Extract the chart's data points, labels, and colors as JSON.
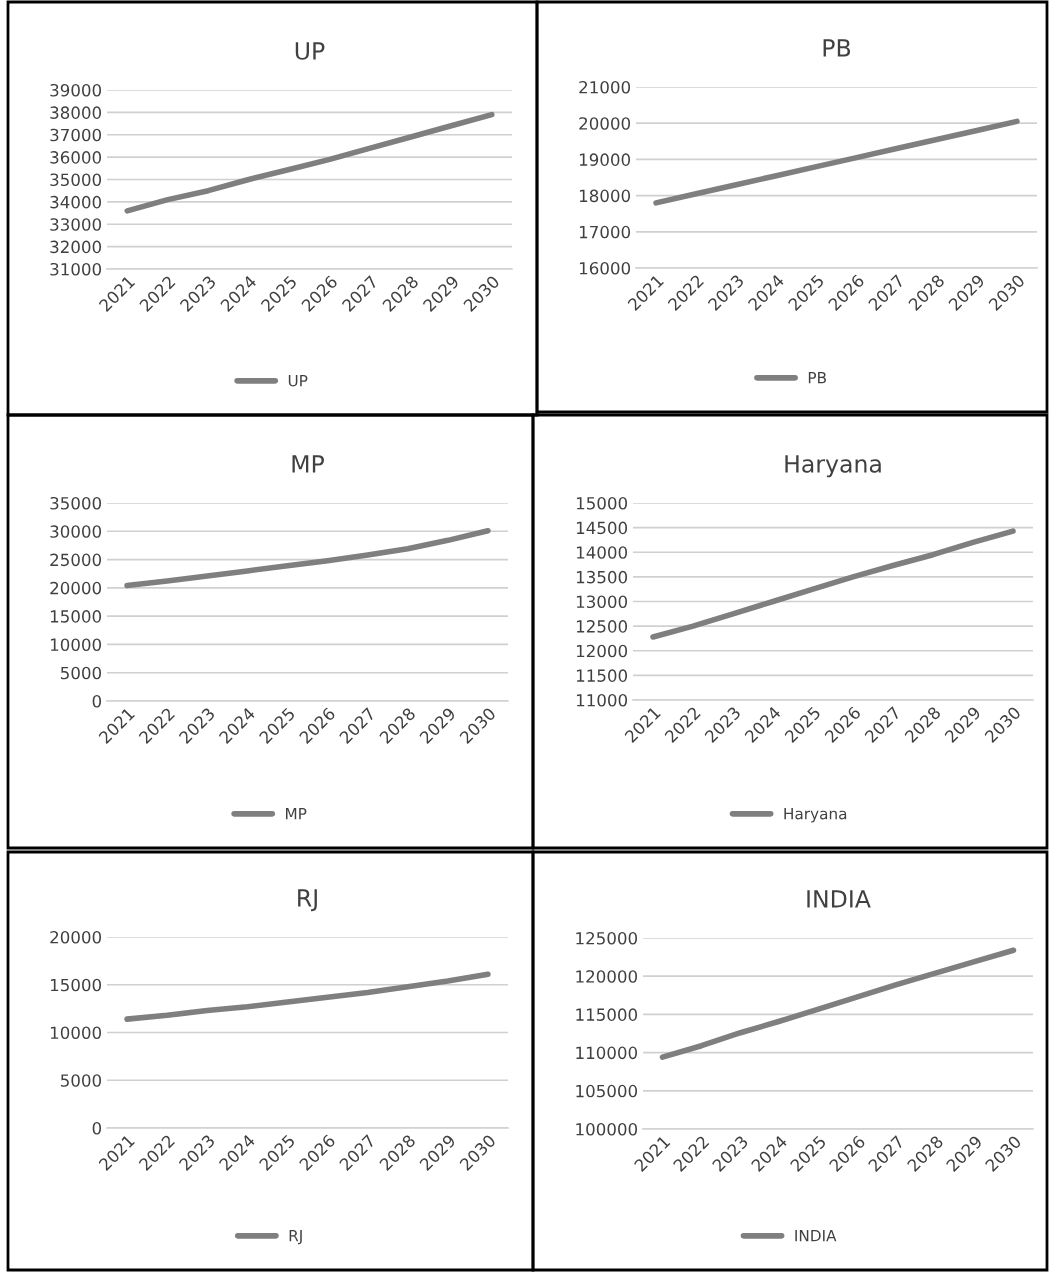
{
  "chart_data": [
    {
      "type": "line",
      "title": "UP",
      "categories": [
        "2021",
        "2022",
        "2023",
        "2024",
        "2025",
        "2026",
        "2027",
        "2028",
        "2029",
        "2030"
      ],
      "series": [
        {
          "name": "UP",
          "color": "#7f7f7f",
          "values": [
            33600,
            34100,
            34500,
            35000,
            35450,
            35900,
            36400,
            36900,
            37400,
            37900
          ]
        }
      ],
      "ylim": [
        31000,
        39000
      ],
      "yticks": [
        31000,
        32000,
        33000,
        34000,
        35000,
        36000,
        37000,
        38000,
        39000
      ],
      "grid": "y",
      "legend": "bottom",
      "marker": "none",
      "line_style": "solid"
    },
    {
      "type": "line",
      "title": "PB",
      "categories": [
        "2021",
        "2022",
        "2023",
        "2024",
        "2025",
        "2026",
        "2027",
        "2028",
        "2029",
        "2030"
      ],
      "series": [
        {
          "name": "PB",
          "color": "#7f7f7f",
          "values": [
            17800,
            18050,
            18300,
            18550,
            18800,
            19050,
            19300,
            19550,
            19800,
            20050
          ]
        }
      ],
      "ylim": [
        16000,
        21000
      ],
      "yticks": [
        16000,
        17000,
        18000,
        19000,
        20000,
        21000
      ],
      "grid": "y",
      "legend": "bottom",
      "marker": "none",
      "line_style": "solid"
    },
    {
      "type": "line",
      "title": "MP",
      "categories": [
        "2021",
        "2022",
        "2023",
        "2024",
        "2025",
        "2026",
        "2027",
        "2028",
        "2029",
        "2030"
      ],
      "series": [
        {
          "name": "MP",
          "color": "#7f7f7f",
          "values": [
            20400,
            21200,
            22100,
            23000,
            23900,
            24800,
            25800,
            26900,
            28400,
            30100
          ]
        }
      ],
      "ylim": [
        0,
        35000
      ],
      "yticks": [
        0,
        5000,
        10000,
        15000,
        20000,
        25000,
        30000,
        35000
      ],
      "grid": "y",
      "legend": "bottom",
      "marker": "none",
      "line_style": "solid"
    },
    {
      "type": "line",
      "title": "Haryana",
      "categories": [
        "2021",
        "2022",
        "2023",
        "2024",
        "2025",
        "2026",
        "2027",
        "2028",
        "2029",
        "2030"
      ],
      "series": [
        {
          "name": "Haryana",
          "color": "#7f7f7f",
          "values": [
            12280,
            12500,
            12750,
            13000,
            13250,
            13500,
            13730,
            13950,
            14200,
            14430
          ]
        }
      ],
      "ylim": [
        11000,
        15000
      ],
      "yticks": [
        11000,
        11500,
        12000,
        12500,
        13000,
        13500,
        14000,
        14500,
        15000
      ],
      "grid": "y",
      "legend": "bottom",
      "marker": "none",
      "line_style": "solid"
    },
    {
      "type": "line",
      "title": "RJ",
      "categories": [
        "2021",
        "2022",
        "2023",
        "2024",
        "2025",
        "2026",
        "2027",
        "2028",
        "2029",
        "2030"
      ],
      "series": [
        {
          "name": "RJ",
          "color": "#7f7f7f",
          "values": [
            11400,
            11800,
            12300,
            12700,
            13200,
            13700,
            14200,
            14800,
            15400,
            16100
          ]
        }
      ],
      "ylim": [
        0,
        20000
      ],
      "yticks": [
        0,
        5000,
        10000,
        15000,
        20000
      ],
      "grid": "y",
      "legend": "bottom",
      "marker": "none",
      "line_style": "solid"
    },
    {
      "type": "line",
      "title": "INDIA",
      "categories": [
        "2021",
        "2022",
        "2023",
        "2024",
        "2025",
        "2026",
        "2027",
        "2028",
        "2029",
        "2030"
      ],
      "series": [
        {
          "name": "INDIA",
          "color": "#7f7f7f",
          "values": [
            109400,
            110900,
            112600,
            114100,
            115700,
            117300,
            118900,
            120400,
            121900,
            123400
          ]
        }
      ],
      "ylim": [
        100000,
        125000
      ],
      "yticks": [
        100000,
        105000,
        110000,
        115000,
        120000,
        125000
      ],
      "grid": "y",
      "legend": "bottom",
      "marker": "none",
      "line_style": "solid"
    }
  ]
}
